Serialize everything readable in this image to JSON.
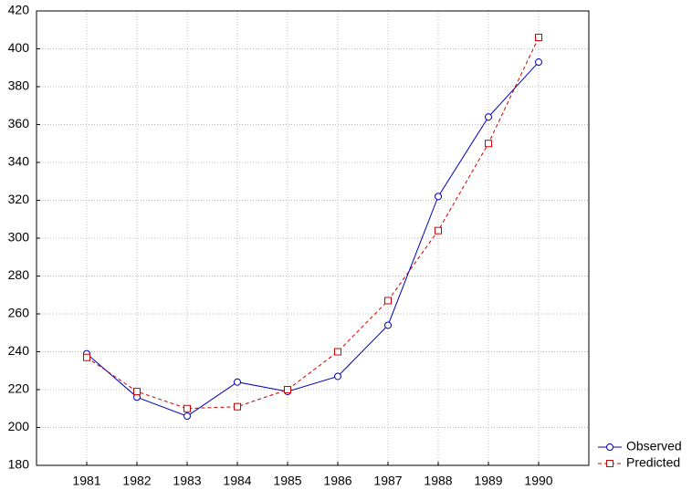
{
  "chart_data": {
    "type": "line",
    "x": [
      1981,
      1982,
      1983,
      1984,
      1985,
      1986,
      1987,
      1988,
      1989,
      1990
    ],
    "xlim": [
      1980,
      1991
    ],
    "xticks": [
      1981,
      1982,
      1983,
      1984,
      1985,
      1986,
      1987,
      1988,
      1989,
      1990
    ],
    "ylim": [
      180,
      420
    ],
    "yticks": [
      180,
      200,
      220,
      240,
      260,
      280,
      300,
      320,
      340,
      360,
      380,
      400,
      420
    ],
    "grid": true,
    "legend": "bottom-right",
    "series": [
      {
        "name": "Observed",
        "color": "#0000c0",
        "marker": "circle",
        "line_style": "solid",
        "values": [
          239,
          216,
          206,
          224,
          219,
          227,
          254,
          322,
          364,
          393
        ]
      },
      {
        "name": "Predicted",
        "color": "#d00000",
        "marker": "square",
        "line_style": "dashed",
        "values": [
          237,
          219,
          210,
          211,
          220,
          240,
          267,
          304,
          350,
          406
        ]
      }
    ]
  }
}
